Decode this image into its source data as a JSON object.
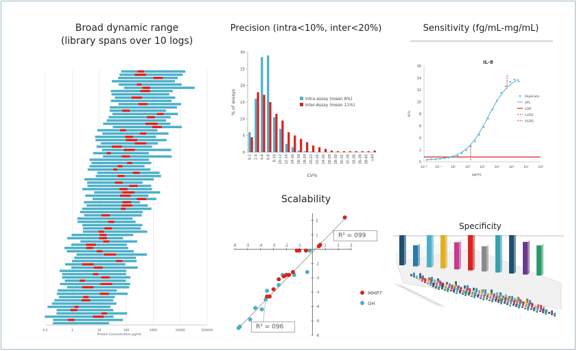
{
  "titles": {
    "dynamic_line1": "Broad dynamic range",
    "dynamic_line2": "(library spans over 10 logs)",
    "precision": "Precision (intra<10%, inter<20%)",
    "sensitivity": "Sensitivity (fg/mL-mg/mL)",
    "scalability": "Scalability",
    "specificity": "Specificity"
  },
  "colors": {
    "teal": "#4bafc8",
    "red": "#d9231f",
    "frame": "#9cb8c6"
  },
  "chart_data": [
    {
      "type": "bar",
      "id": "dynamic-range",
      "orientation": "horizontal",
      "xlabel": "Protein Concentration pg/mL",
      "x_scale": "log",
      "x_ticks": [
        "0.1",
        "1",
        "10",
        "100",
        "1000",
        "10000",
        "100000"
      ],
      "row_count": 78,
      "series": [
        {
          "name": "",
          "color": "#4bafc8"
        },
        {
          "name": "",
          "color": "#d9231f"
        }
      ]
    },
    {
      "type": "bar",
      "id": "precision",
      "categories": [
        "0-2",
        "2-4",
        "4-6",
        "6-8",
        "8-10",
        "10-12",
        "12-14",
        "14-16",
        "16-18",
        "18-20",
        "20-22",
        "22-24",
        "24-26",
        "26-28",
        "28-30",
        "30-32",
        "32-34",
        "34-36",
        "36-38",
        "38-40",
        ">40"
      ],
      "series": [
        {
          "name": "Intra-assay (mean 8%)",
          "color": "#4bafc8",
          "values": [
            6,
            16,
            28.5,
            29,
            10.5,
            7,
            2.5,
            1.5,
            0.5,
            0.3,
            0.2,
            0.1,
            0,
            0,
            0,
            0,
            0,
            0,
            0,
            0,
            0
          ]
        },
        {
          "name": "Inter-Assay (mean 11%)",
          "color": "#d9231f",
          "values": [
            4.5,
            18,
            17.2,
            15,
            11.5,
            9.5,
            6,
            5,
            4,
            3,
            2,
            1.5,
            1,
            0.5,
            0.3,
            0.3,
            0.3,
            0.3,
            0.3,
            0.3,
            0.5
          ]
        }
      ],
      "xlabel": "CV%",
      "ylabel": "% of assays",
      "ylim": [
        0,
        30
      ],
      "yticks": [
        "0",
        "5",
        "10",
        "15",
        "20",
        "25",
        "30"
      ]
    },
    {
      "type": "scatter",
      "id": "sensitivity",
      "title": "IL-8",
      "xlabel": "pg/mL",
      "ylabel": "RFU",
      "x_scale": "log",
      "x_ticks": [
        "10⁻²",
        "10⁻¹",
        "10⁰",
        "10¹",
        "10²",
        "10³",
        "10⁴",
        "10⁵",
        "10⁶"
      ],
      "y_ticks": [
        "0",
        "2",
        "4",
        "6",
        "8",
        "10",
        "12",
        "14",
        "16"
      ],
      "ylim": [
        0,
        16
      ],
      "lod": 0.8,
      "lloq_x": 1.2,
      "uloq_x": 3.7,
      "replicates": [
        [
          -1.8,
          0.3
        ],
        [
          -1.5,
          0.4
        ],
        [
          -1.2,
          0.4
        ],
        [
          -0.9,
          0.5
        ],
        [
          -0.6,
          0.6
        ],
        [
          -0.3,
          0.7
        ],
        [
          0.0,
          0.8
        ],
        [
          0.3,
          1.0
        ],
        [
          0.6,
          1.4
        ],
        [
          0.9,
          1.9
        ],
        [
          1.2,
          2.6
        ],
        [
          1.5,
          3.4
        ],
        [
          1.8,
          4.5
        ],
        [
          2.1,
          5.8
        ],
        [
          2.4,
          7.2
        ],
        [
          2.7,
          8.7
        ],
        [
          3.0,
          10.2
        ],
        [
          3.3,
          11.5
        ],
        [
          3.6,
          12.6
        ],
        [
          3.9,
          13.3
        ],
        [
          4.2,
          13.7
        ],
        [
          4.5,
          13.4
        ]
      ],
      "legend": [
        "Replicate",
        "4PL",
        "LOD",
        "LLOQ",
        "ULOQ"
      ]
    },
    {
      "type": "scatter",
      "id": "scalability",
      "xlim": [
        -6,
        3
      ],
      "ylim": [
        -6,
        2.5
      ],
      "x_ticks": [
        "-6",
        "-5",
        "-4",
        "-3",
        "-2",
        "-1",
        "1",
        "2",
        "3"
      ],
      "y_ticks": [
        "-6",
        "-5",
        "-4",
        "-3",
        "-2",
        "-1",
        "1",
        "2"
      ],
      "series": [
        {
          "name": "MMP7",
          "color": "#d9231f",
          "points": [
            [
              2.5,
              2.2
            ],
            [
              0.6,
              0.3
            ],
            [
              0.5,
              0.2
            ],
            [
              -0.5,
              -0.1
            ],
            [
              -1.0,
              -0.1
            ],
            [
              -1.2,
              -0.1
            ],
            [
              -1.5,
              -1.6
            ],
            [
              -1.8,
              -1.8
            ],
            [
              -2.0,
              -1.8
            ],
            [
              -2.2,
              -1.9
            ],
            [
              -2.6,
              -2.1
            ],
            [
              -3.0,
              -2.8
            ],
            [
              -3.3,
              -3.3
            ],
            [
              -3.5,
              -3.3
            ]
          ]
        },
        {
          "name": "GH",
          "color": "#4bafc8",
          "points": [
            [
              0.5,
              0.2
            ],
            [
              -0.2,
              -0.1
            ],
            [
              -0.4,
              -1.6
            ],
            [
              -1.4,
              -1.8
            ],
            [
              -2.3,
              -1.8
            ],
            [
              -2.6,
              -2.5
            ],
            [
              -3.5,
              -2.9
            ],
            [
              -3.6,
              -3.5
            ],
            [
              -3.9,
              -4.2
            ],
            [
              -4.4,
              -4.1
            ],
            [
              -4.8,
              -4.9
            ],
            [
              -5.6,
              -5.4
            ],
            [
              -5.7,
              -5.5
            ]
          ]
        }
      ],
      "r2_labels": [
        "R² = 099",
        "R² = 096"
      ]
    }
  ],
  "specificity": {
    "type": "3d-bar"
  }
}
